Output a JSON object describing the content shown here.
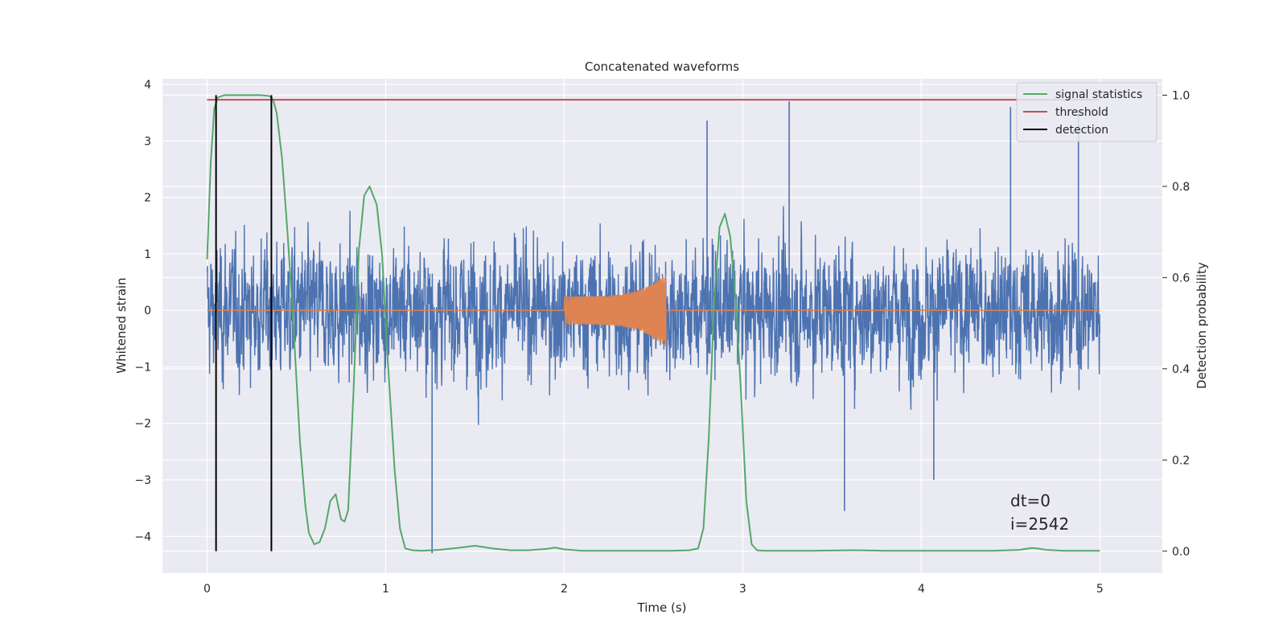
{
  "chart_data": {
    "type": "line",
    "title": "Concatenated waveforms",
    "xlabel": "Time (s)",
    "ylabel": "Whitened strain",
    "y2label": "Detection probability",
    "xlim": [
      -0.25,
      5.35
    ],
    "ylim": [
      -4.65,
      4.1
    ],
    "y2lim": [
      -0.048,
      1.036
    ],
    "xticks": [
      0,
      1,
      2,
      3,
      4,
      5
    ],
    "yticks": [
      -4,
      -3,
      -2,
      -1,
      0,
      1,
      2,
      3,
      4
    ],
    "y2ticks": [
      0.0,
      0.2,
      0.4,
      0.6,
      0.8,
      1.0
    ],
    "grid": true,
    "legend_position": "top-right",
    "annotations": [
      "dt=0",
      "i=2542"
    ],
    "series": [
      {
        "name": "",
        "axis": "left",
        "color": "#4c72b0",
        "kind": "noise",
        "t_range": [
          0,
          5
        ],
        "approx_envelope": [
          -2.6,
          2.4
        ],
        "spikes": [
          [
            3.26,
            3.7
          ],
          [
            4.5,
            3.6
          ],
          [
            4.88,
            3.5
          ],
          [
            1.26,
            -4.3
          ],
          [
            3.57,
            -3.55
          ],
          [
            4.07,
            -3.0
          ],
          [
            2.8,
            3.36
          ]
        ]
      },
      {
        "name": "",
        "axis": "left",
        "color": "#dd8452",
        "kind": "chirp",
        "t_range": [
          2.0,
          2.57
        ],
        "start_amplitude": 0.25,
        "peak_amplitude": 0.65
      },
      {
        "name": "signal statistics",
        "axis": "right",
        "color": "#55a868",
        "x": [
          0.0,
          0.02,
          0.04,
          0.06,
          0.08,
          0.1,
          0.15,
          0.2,
          0.25,
          0.3,
          0.35,
          0.37,
          0.39,
          0.42,
          0.45,
          0.48,
          0.5,
          0.52,
          0.55,
          0.57,
          0.6,
          0.63,
          0.66,
          0.69,
          0.72,
          0.75,
          0.77,
          0.79,
          0.82,
          0.85,
          0.88,
          0.91,
          0.95,
          0.98,
          1.01,
          1.05,
          1.08,
          1.11,
          1.15,
          1.2,
          1.3,
          1.4,
          1.5,
          1.6,
          1.7,
          1.8,
          1.9,
          1.95,
          2.0,
          2.1,
          2.2,
          2.4,
          2.6,
          2.7,
          2.75,
          2.78,
          2.81,
          2.84,
          2.87,
          2.9,
          2.93,
          2.96,
          2.99,
          3.02,
          3.05,
          3.08,
          3.12,
          3.2,
          3.4,
          3.6,
          3.65,
          3.8,
          4.0,
          4.2,
          4.4,
          4.55,
          4.62,
          4.65,
          4.7,
          4.8,
          5.0
        ],
        "values": [
          0.64,
          0.85,
          0.97,
          0.995,
          0.998,
          1.0,
          1.0,
          1.0,
          1.0,
          1.0,
          0.998,
          0.99,
          0.96,
          0.86,
          0.7,
          0.52,
          0.38,
          0.24,
          0.1,
          0.04,
          0.015,
          0.02,
          0.05,
          0.11,
          0.125,
          0.07,
          0.065,
          0.09,
          0.35,
          0.66,
          0.78,
          0.8,
          0.76,
          0.65,
          0.43,
          0.18,
          0.05,
          0.006,
          0.002,
          0.001,
          0.003,
          0.007,
          0.012,
          0.006,
          0.002,
          0.002,
          0.005,
          0.008,
          0.004,
          0.001,
          0.001,
          0.001,
          0.001,
          0.002,
          0.006,
          0.05,
          0.25,
          0.55,
          0.71,
          0.74,
          0.69,
          0.55,
          0.35,
          0.11,
          0.015,
          0.002,
          0.001,
          0.001,
          0.001,
          0.002,
          0.002,
          0.001,
          0.001,
          0.001,
          0.001,
          0.003,
          0.007,
          0.006,
          0.003,
          0.001,
          0.001
        ]
      },
      {
        "name": "threshold",
        "axis": "right",
        "color": "#c44e52",
        "x": [
          0,
          5
        ],
        "values": [
          0.99,
          0.99
        ]
      },
      {
        "name": "detection",
        "axis": "right",
        "color": "#000000",
        "kind": "vlines",
        "x": [
          0.05,
          0.36
        ],
        "y_range": [
          0.0,
          1.0
        ]
      }
    ]
  }
}
